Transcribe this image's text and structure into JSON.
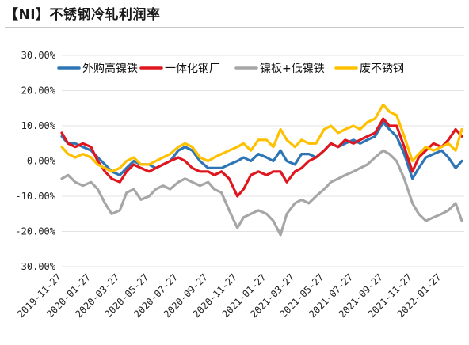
{
  "title": "【NI】不锈钢冷轧利润率",
  "chart_data": {
    "type": "line",
    "title": "【NI】不锈钢冷轧利润率",
    "y_range": [
      -0.3,
      0.3
    ],
    "y_ticks": [
      0.3,
      0.2,
      0.1,
      0.0,
      -0.1,
      -0.2,
      -0.3
    ],
    "y_tick_labels": [
      "30.00%",
      "20.00%",
      "10.00%",
      "0.00%",
      "-10.00%",
      "-20.00%",
      "-30.00%"
    ],
    "x_range": [
      "2019-11-27",
      "2022-03-15"
    ],
    "x_tick_labels": [
      "2019-11-27",
      "2020-01-27",
      "2020-03-27",
      "2020-05-27",
      "2020-07-27",
      "2020-09-27",
      "2020-11-27",
      "2021-01-27",
      "2021-03-27",
      "2021-05-27",
      "2021-07-27",
      "2021-09-27",
      "2021-11-27",
      "2022-01-27"
    ],
    "grid": "horizontal",
    "legend_position": "top",
    "series": [
      {
        "name": "外购高镍铁",
        "color": "#2e75b6",
        "points": [
          [
            "2019-11-27",
            0.07
          ],
          [
            "2019-12-10",
            0.05
          ],
          [
            "2019-12-25",
            0.05
          ],
          [
            "2020-01-10",
            0.04
          ],
          [
            "2020-01-27",
            0.03
          ],
          [
            "2020-02-10",
            0.01
          ],
          [
            "2020-02-25",
            -0.01
          ],
          [
            "2020-03-10",
            -0.03
          ],
          [
            "2020-03-27",
            -0.04
          ],
          [
            "2020-04-10",
            -0.02
          ],
          [
            "2020-04-25",
            0.0
          ],
          [
            "2020-05-10",
            -0.01
          ],
          [
            "2020-05-27",
            -0.01
          ],
          [
            "2020-06-10",
            -0.02
          ],
          [
            "2020-06-25",
            -0.01
          ],
          [
            "2020-07-10",
            0.0
          ],
          [
            "2020-07-27",
            0.03
          ],
          [
            "2020-08-10",
            0.04
          ],
          [
            "2020-08-25",
            0.03
          ],
          [
            "2020-09-10",
            0.0
          ],
          [
            "2020-09-27",
            -0.02
          ],
          [
            "2020-10-10",
            -0.02
          ],
          [
            "2020-10-25",
            -0.02
          ],
          [
            "2020-11-10",
            -0.01
          ],
          [
            "2020-11-27",
            0.0
          ],
          [
            "2020-12-10",
            0.01
          ],
          [
            "2020-12-25",
            0.0
          ],
          [
            "2021-01-10",
            0.02
          ],
          [
            "2021-01-27",
            0.01
          ],
          [
            "2021-02-10",
            0.0
          ],
          [
            "2021-02-25",
            0.03
          ],
          [
            "2021-03-10",
            0.0
          ],
          [
            "2021-03-27",
            -0.01
          ],
          [
            "2021-04-10",
            0.02
          ],
          [
            "2021-04-25",
            0.02
          ],
          [
            "2021-05-10",
            0.01
          ],
          [
            "2021-05-27",
            0.03
          ],
          [
            "2021-06-10",
            0.05
          ],
          [
            "2021-06-25",
            0.04
          ],
          [
            "2021-07-10",
            0.05
          ],
          [
            "2021-07-27",
            0.06
          ],
          [
            "2021-08-10",
            0.05
          ],
          [
            "2021-08-25",
            0.06
          ],
          [
            "2021-09-10",
            0.07
          ],
          [
            "2021-09-27",
            0.11
          ],
          [
            "2021-10-10",
            0.09
          ],
          [
            "2021-10-25",
            0.07
          ],
          [
            "2021-11-10",
            0.02
          ],
          [
            "2021-11-27",
            -0.05
          ],
          [
            "2021-12-10",
            -0.02
          ],
          [
            "2021-12-25",
            0.01
          ],
          [
            "2022-01-10",
            0.02
          ],
          [
            "2022-01-27",
            0.03
          ],
          [
            "2022-02-10",
            0.01
          ],
          [
            "2022-02-25",
            -0.02
          ],
          [
            "2022-03-10",
            0.0
          ]
        ]
      },
      {
        "name": "一体化钢厂",
        "color": "#e0161e",
        "points": [
          [
            "2019-11-27",
            0.08
          ],
          [
            "2019-12-10",
            0.05
          ],
          [
            "2019-12-25",
            0.04
          ],
          [
            "2020-01-10",
            0.05
          ],
          [
            "2020-01-27",
            0.04
          ],
          [
            "2020-02-10",
            0.0
          ],
          [
            "2020-02-25",
            -0.03
          ],
          [
            "2020-03-10",
            -0.05
          ],
          [
            "2020-03-27",
            -0.06
          ],
          [
            "2020-04-10",
            -0.03
          ],
          [
            "2020-04-25",
            -0.01
          ],
          [
            "2020-05-10",
            -0.02
          ],
          [
            "2020-05-27",
            -0.03
          ],
          [
            "2020-06-10",
            -0.02
          ],
          [
            "2020-06-25",
            -0.01
          ],
          [
            "2020-07-10",
            0.0
          ],
          [
            "2020-07-27",
            0.01
          ],
          [
            "2020-08-10",
            0.0
          ],
          [
            "2020-08-25",
            -0.02
          ],
          [
            "2020-09-10",
            -0.03
          ],
          [
            "2020-09-27",
            -0.03
          ],
          [
            "2020-10-10",
            -0.04
          ],
          [
            "2020-10-25",
            -0.03
          ],
          [
            "2020-11-10",
            -0.05
          ],
          [
            "2020-11-27",
            -0.1
          ],
          [
            "2020-12-10",
            -0.08
          ],
          [
            "2020-12-25",
            -0.04
          ],
          [
            "2021-01-10",
            -0.03
          ],
          [
            "2021-01-27",
            -0.04
          ],
          [
            "2021-02-10",
            -0.03
          ],
          [
            "2021-02-25",
            -0.03
          ],
          [
            "2021-03-10",
            -0.06
          ],
          [
            "2021-03-27",
            -0.03
          ],
          [
            "2021-04-10",
            -0.02
          ],
          [
            "2021-04-25",
            0.0
          ],
          [
            "2021-05-10",
            0.01
          ],
          [
            "2021-05-27",
            0.03
          ],
          [
            "2021-06-10",
            0.05
          ],
          [
            "2021-06-25",
            0.04
          ],
          [
            "2021-07-10",
            0.06
          ],
          [
            "2021-07-27",
            0.05
          ],
          [
            "2021-08-10",
            0.06
          ],
          [
            "2021-08-25",
            0.07
          ],
          [
            "2021-09-10",
            0.08
          ],
          [
            "2021-09-27",
            0.12
          ],
          [
            "2021-10-10",
            0.1
          ],
          [
            "2021-10-25",
            0.1
          ],
          [
            "2021-11-10",
            0.04
          ],
          [
            "2021-11-27",
            -0.03
          ],
          [
            "2021-12-10",
            0.01
          ],
          [
            "2021-12-25",
            0.03
          ],
          [
            "2022-01-10",
            0.05
          ],
          [
            "2022-01-27",
            0.04
          ],
          [
            "2022-02-10",
            0.06
          ],
          [
            "2022-02-25",
            0.09
          ],
          [
            "2022-03-10",
            0.07
          ]
        ]
      },
      {
        "name": "镍板+低镍铁",
        "color": "#a6a6a6",
        "points": [
          [
            "2019-11-27",
            -0.05
          ],
          [
            "2019-12-10",
            -0.04
          ],
          [
            "2019-12-25",
            -0.06
          ],
          [
            "2020-01-10",
            -0.07
          ],
          [
            "2020-01-27",
            -0.06
          ],
          [
            "2020-02-10",
            -0.08
          ],
          [
            "2020-02-25",
            -0.12
          ],
          [
            "2020-03-10",
            -0.15
          ],
          [
            "2020-03-27",
            -0.14
          ],
          [
            "2020-04-10",
            -0.09
          ],
          [
            "2020-04-25",
            -0.08
          ],
          [
            "2020-05-10",
            -0.11
          ],
          [
            "2020-05-27",
            -0.1
          ],
          [
            "2020-06-10",
            -0.08
          ],
          [
            "2020-06-25",
            -0.07
          ],
          [
            "2020-07-10",
            -0.08
          ],
          [
            "2020-07-27",
            -0.06
          ],
          [
            "2020-08-10",
            -0.05
          ],
          [
            "2020-08-25",
            -0.06
          ],
          [
            "2020-09-10",
            -0.07
          ],
          [
            "2020-09-27",
            -0.06
          ],
          [
            "2020-10-10",
            -0.08
          ],
          [
            "2020-10-25",
            -0.09
          ],
          [
            "2020-11-10",
            -0.14
          ],
          [
            "2020-11-27",
            -0.19
          ],
          [
            "2020-12-10",
            -0.16
          ],
          [
            "2020-12-25",
            -0.15
          ],
          [
            "2021-01-10",
            -0.14
          ],
          [
            "2021-01-27",
            -0.15
          ],
          [
            "2021-02-10",
            -0.17
          ],
          [
            "2021-02-25",
            -0.21
          ],
          [
            "2021-03-10",
            -0.15
          ],
          [
            "2021-03-27",
            -0.12
          ],
          [
            "2021-04-10",
            -0.11
          ],
          [
            "2021-04-25",
            -0.12
          ],
          [
            "2021-05-10",
            -0.1
          ],
          [
            "2021-05-27",
            -0.08
          ],
          [
            "2021-06-10",
            -0.06
          ],
          [
            "2021-06-25",
            -0.05
          ],
          [
            "2021-07-10",
            -0.04
          ],
          [
            "2021-07-27",
            -0.03
          ],
          [
            "2021-08-10",
            -0.02
          ],
          [
            "2021-08-25",
            -0.01
          ],
          [
            "2021-09-10",
            0.01
          ],
          [
            "2021-09-27",
            0.03
          ],
          [
            "2021-10-10",
            0.02
          ],
          [
            "2021-10-25",
            0.0
          ],
          [
            "2021-11-10",
            -0.05
          ],
          [
            "2021-11-27",
            -0.12
          ],
          [
            "2021-12-10",
            -0.15
          ],
          [
            "2021-12-25",
            -0.17
          ],
          [
            "2022-01-10",
            -0.16
          ],
          [
            "2022-01-27",
            -0.15
          ],
          [
            "2022-02-10",
            -0.14
          ],
          [
            "2022-02-25",
            -0.12
          ],
          [
            "2022-03-10",
            -0.17
          ]
        ]
      },
      {
        "name": "废不锈钢",
        "color": "#ffc000",
        "points": [
          [
            "2019-11-27",
            0.04
          ],
          [
            "2019-12-10",
            0.02
          ],
          [
            "2019-12-25",
            0.01
          ],
          [
            "2020-01-10",
            0.02
          ],
          [
            "2020-01-27",
            0.01
          ],
          [
            "2020-02-10",
            -0.01
          ],
          [
            "2020-02-25",
            -0.02
          ],
          [
            "2020-03-10",
            -0.03
          ],
          [
            "2020-03-27",
            -0.02
          ],
          [
            "2020-04-10",
            0.0
          ],
          [
            "2020-04-25",
            0.01
          ],
          [
            "2020-05-10",
            -0.01
          ],
          [
            "2020-05-27",
            -0.01
          ],
          [
            "2020-06-10",
            0.0
          ],
          [
            "2020-06-25",
            0.01
          ],
          [
            "2020-07-10",
            0.02
          ],
          [
            "2020-07-27",
            0.04
          ],
          [
            "2020-08-10",
            0.05
          ],
          [
            "2020-08-25",
            0.04
          ],
          [
            "2020-09-10",
            0.01
          ],
          [
            "2020-09-27",
            0.0
          ],
          [
            "2020-10-10",
            0.01
          ],
          [
            "2020-10-25",
            0.02
          ],
          [
            "2020-11-10",
            0.03
          ],
          [
            "2020-11-27",
            0.04
          ],
          [
            "2020-12-10",
            0.05
          ],
          [
            "2020-12-25",
            0.03
          ],
          [
            "2021-01-10",
            0.06
          ],
          [
            "2021-01-27",
            0.06
          ],
          [
            "2021-02-10",
            0.04
          ],
          [
            "2021-02-25",
            0.09
          ],
          [
            "2021-03-10",
            0.06
          ],
          [
            "2021-03-27",
            0.04
          ],
          [
            "2021-04-10",
            0.06
          ],
          [
            "2021-04-25",
            0.05
          ],
          [
            "2021-05-10",
            0.05
          ],
          [
            "2021-05-27",
            0.09
          ],
          [
            "2021-06-10",
            0.1
          ],
          [
            "2021-06-25",
            0.08
          ],
          [
            "2021-07-10",
            0.09
          ],
          [
            "2021-07-27",
            0.1
          ],
          [
            "2021-08-10",
            0.09
          ],
          [
            "2021-08-25",
            0.11
          ],
          [
            "2021-09-10",
            0.12
          ],
          [
            "2021-09-27",
            0.16
          ],
          [
            "2021-10-10",
            0.14
          ],
          [
            "2021-10-25",
            0.13
          ],
          [
            "2021-11-10",
            0.07
          ],
          [
            "2021-11-27",
            0.0
          ],
          [
            "2021-12-10",
            0.02
          ],
          [
            "2021-12-25",
            0.04
          ],
          [
            "2022-01-10",
            0.03
          ],
          [
            "2022-01-27",
            0.04
          ],
          [
            "2022-02-10",
            0.05
          ],
          [
            "2022-02-25",
            0.03
          ],
          [
            "2022-03-10",
            0.09
          ]
        ]
      }
    ]
  }
}
